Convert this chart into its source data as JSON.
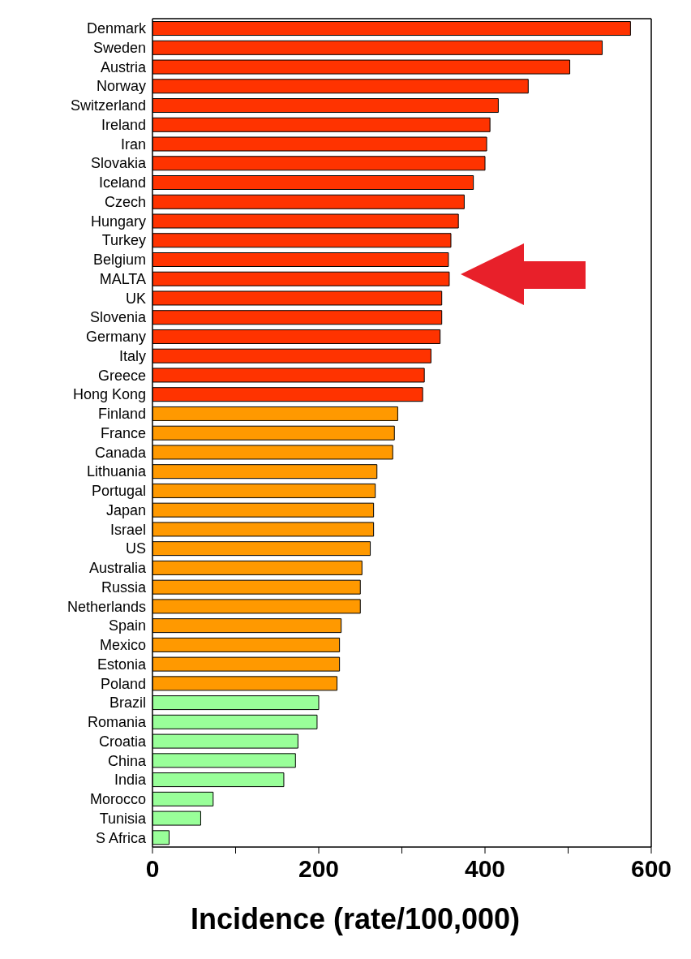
{
  "chart_data": {
    "type": "bar",
    "orientation": "horizontal",
    "xlabel": "Incidence (rate/100,000)",
    "categories": [
      "Denmark",
      "Sweden",
      "Austria",
      "Norway",
      "Switzerland",
      "Ireland",
      "Iran",
      "Slovakia",
      "Iceland",
      "Czech",
      "Hungary",
      "Turkey",
      "Belgium",
      "MALTA",
      "UK",
      "Slovenia",
      "Germany",
      "Italy",
      "Greece",
      "Hong Kong",
      "Finland",
      "France",
      "Canada",
      "Lithuania",
      "Portugal",
      "Japan",
      "Israel",
      "US",
      "Australia",
      "Russia",
      "Netherlands",
      "Spain",
      "Mexico",
      "Estonia",
      "Poland",
      "Brazil",
      "Romania",
      "Croatia",
      "China",
      "India",
      "Morocco",
      "Tunisia",
      "S Africa"
    ],
    "values": [
      575,
      541,
      502,
      452,
      416,
      406,
      402,
      400,
      386,
      375,
      368,
      359,
      356,
      357,
      348,
      348,
      346,
      335,
      327,
      325,
      295,
      291,
      289,
      270,
      268,
      266,
      266,
      262,
      252,
      250,
      250,
      227,
      225,
      225,
      222,
      200,
      198,
      175,
      172,
      158,
      73,
      58,
      20
    ],
    "colors": [
      "#ff3300",
      "#ff3300",
      "#ff3300",
      "#ff3300",
      "#ff3300",
      "#ff3300",
      "#ff3300",
      "#ff3300",
      "#ff3300",
      "#ff3300",
      "#ff3300",
      "#ff3300",
      "#ff3300",
      "#ff3300",
      "#ff3300",
      "#ff3300",
      "#ff3300",
      "#ff3300",
      "#ff3300",
      "#ff3300",
      "#ff9900",
      "#ff9900",
      "#ff9900",
      "#ff9900",
      "#ff9900",
      "#ff9900",
      "#ff9900",
      "#ff9900",
      "#ff9900",
      "#ff9900",
      "#ff9900",
      "#ff9900",
      "#ff9900",
      "#ff9900",
      "#ff9900",
      "#99ff99",
      "#99ff99",
      "#99ff99",
      "#99ff99",
      "#99ff99",
      "#99ff99",
      "#99ff99",
      "#99ff99"
    ],
    "xlim": [
      0,
      600
    ],
    "xticks": [
      0,
      {
        "value": 100,
        "label": null
      },
      200,
      {
        "value": 300,
        "label": null
      },
      400,
      {
        "value": 500,
        "label": null
      },
      600
    ],
    "tick_labels": "xy"
  }
}
